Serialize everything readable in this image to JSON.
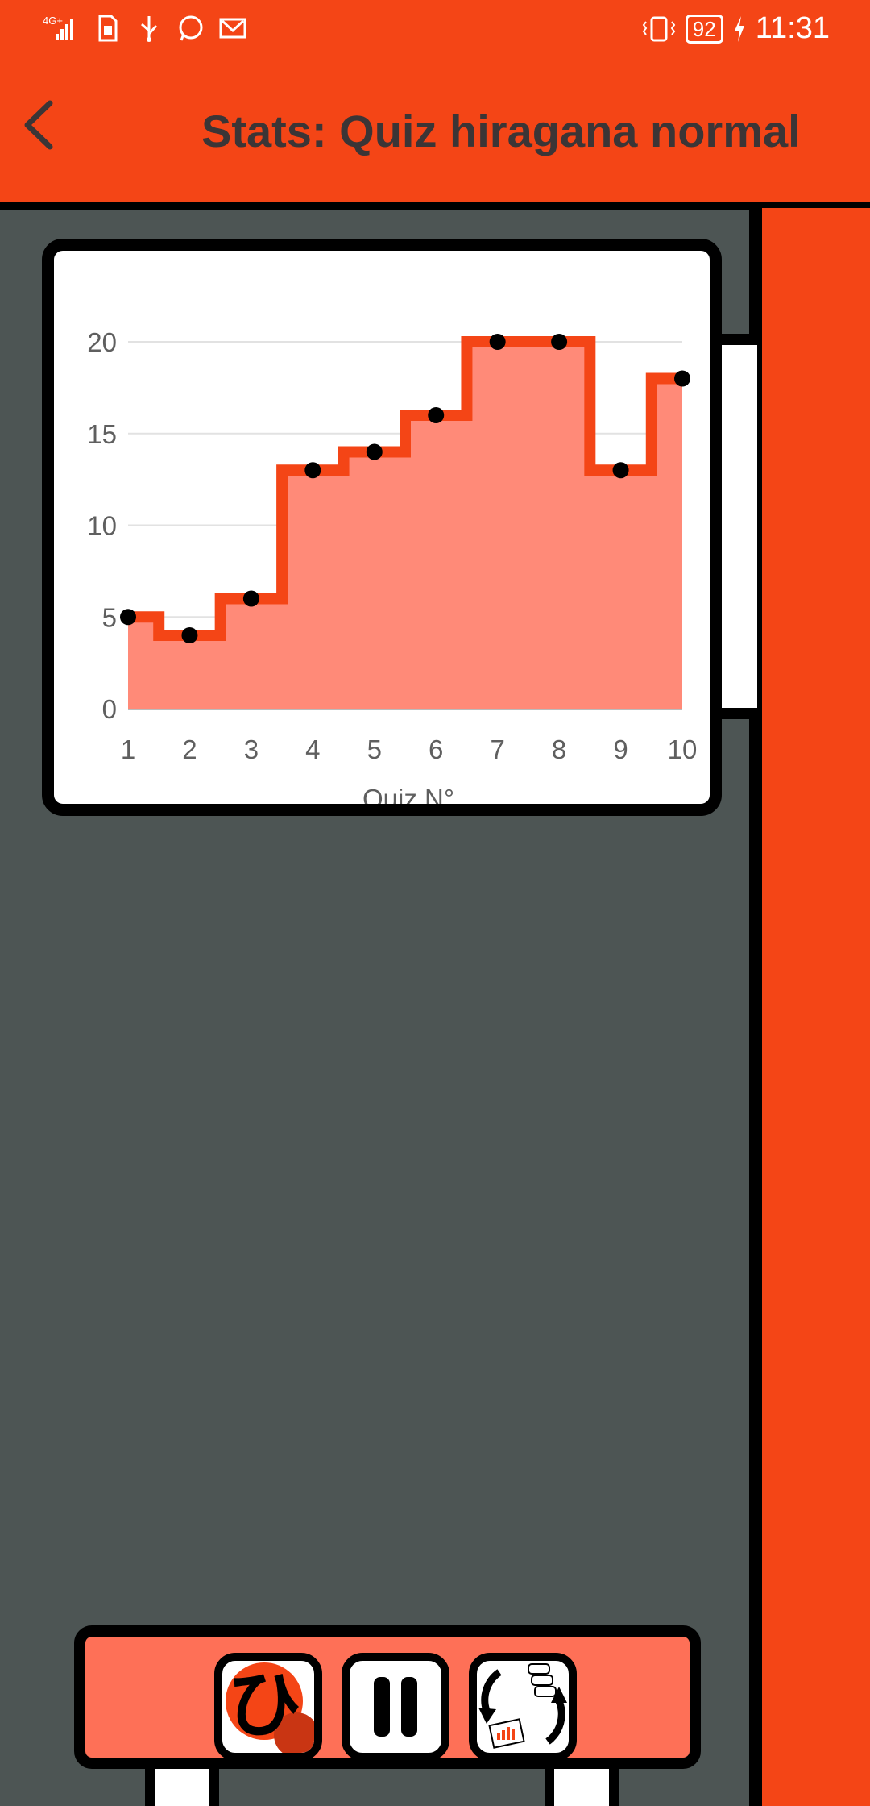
{
  "status_bar": {
    "network": "4G+",
    "battery": "92",
    "time": "11:31",
    "icons": [
      "signal-icon",
      "sim-icon",
      "usb-icon",
      "whatsapp-icon",
      "mail-icon",
      "vibrate-icon",
      "battery-icon",
      "charging-icon"
    ]
  },
  "header": {
    "title": "Stats: Quiz hiragana normal"
  },
  "chart_data": {
    "type": "area",
    "x": [
      1,
      2,
      3,
      4,
      5,
      6,
      7,
      8,
      9,
      10
    ],
    "values": [
      5,
      4,
      6,
      13,
      14,
      16,
      20,
      20,
      13,
      18
    ],
    "xlabel": "Quiz N°",
    "ylabel": "",
    "ylim": [
      0,
      20
    ],
    "yticks": [
      0,
      5,
      10,
      15,
      20
    ],
    "step": "middle",
    "grid": true,
    "legend": "none",
    "colors": {
      "line": "#f44516",
      "fill": "#ff8a78",
      "points": "#000000"
    }
  },
  "toolbar": {
    "buttons": [
      {
        "icon": "hiragana-hi-icon",
        "glyph": "ひ"
      },
      {
        "icon": "pause-icon"
      },
      {
        "icon": "sync-stats-icon"
      }
    ]
  },
  "colors": {
    "accent": "#f44516",
    "background": "#4d5554",
    "toolbar": "#fe7057"
  }
}
